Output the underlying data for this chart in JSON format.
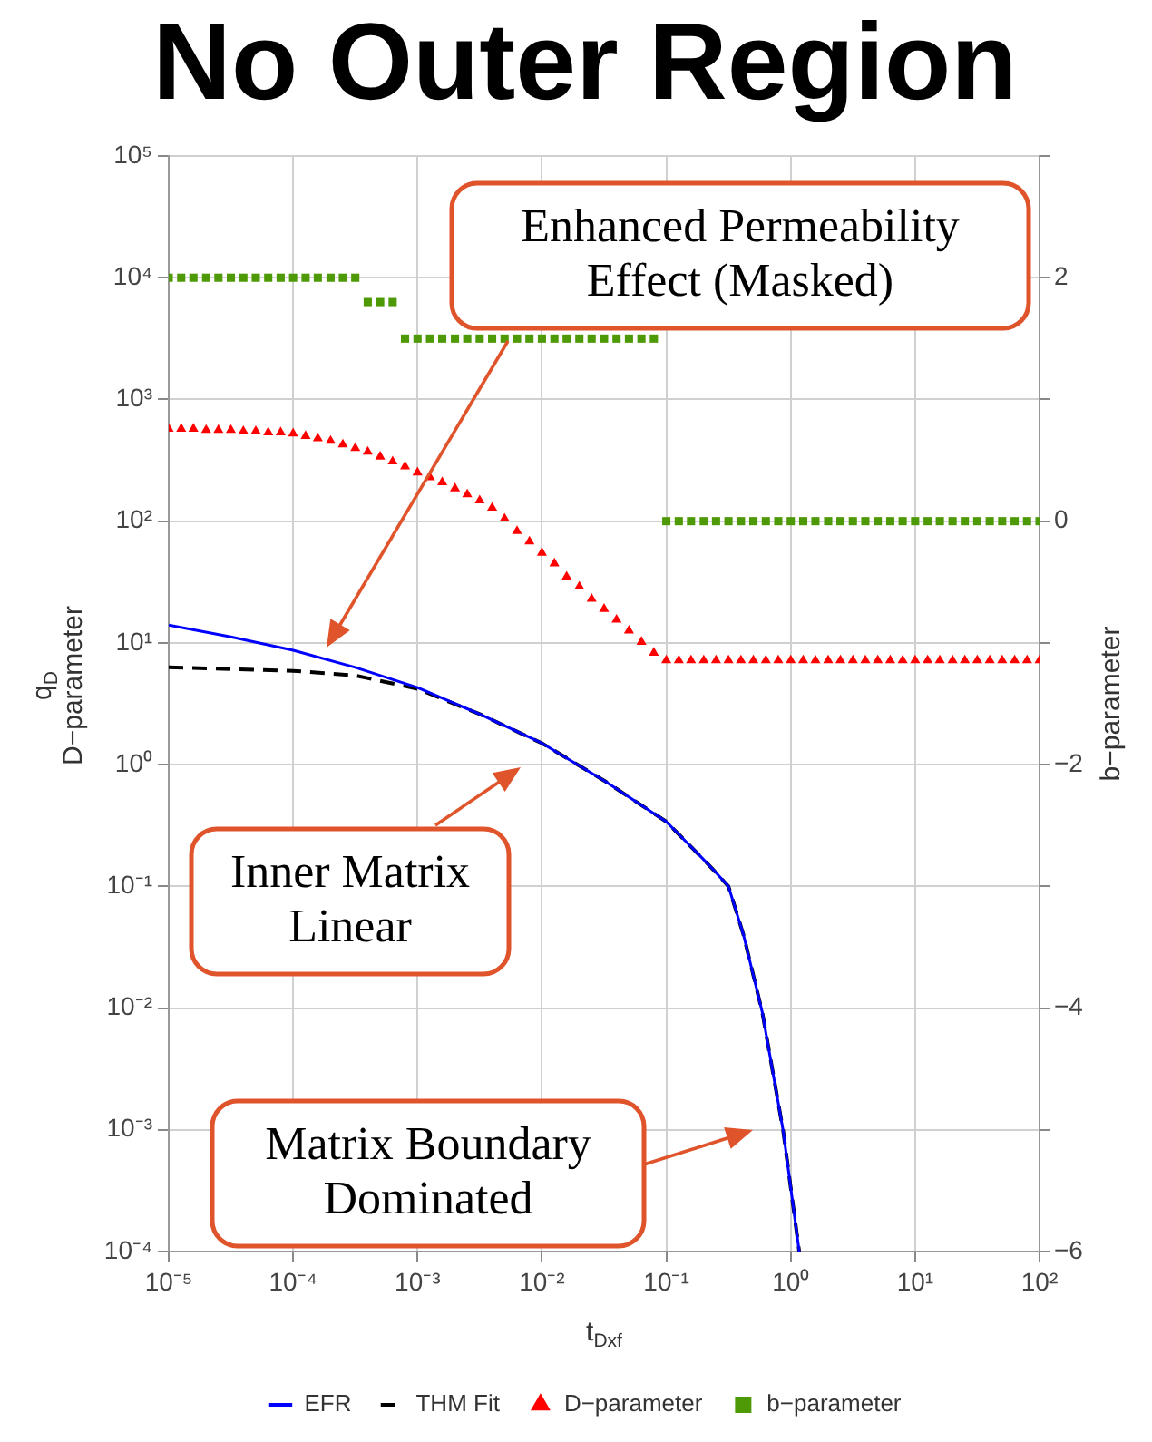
{
  "chart_data": {
    "type": "line",
    "title": "No Outer Region",
    "xlabel": "t$_{Dxf}$",
    "ylabel": "q$_{D}$\nD−parameter",
    "y2label": "b−parameter",
    "log": "xy",
    "grid": true,
    "legend": "bottom",
    "xlim": [
      1e-05,
      100
    ],
    "xticks": [
      {
        "value": 1e-05,
        "label": "10⁻⁵"
      },
      {
        "value": 0.0001,
        "label": "10⁻⁴"
      },
      {
        "value": 0.001,
        "label": "10⁻³"
      },
      {
        "value": 0.01,
        "label": "10⁻²"
      },
      {
        "value": 0.1,
        "label": "10⁻¹"
      },
      {
        "value": 1,
        "label": "10⁰"
      },
      {
        "value": 10,
        "label": "10¹"
      },
      {
        "value": 100,
        "label": "10²"
      }
    ],
    "ylim": [
      0.0001,
      100000
    ],
    "yticks": [
      {
        "value": 0.0001,
        "label": "10⁻⁴"
      },
      {
        "value": 0.001,
        "label": "10⁻³"
      },
      {
        "value": 0.01,
        "label": "10⁻²"
      },
      {
        "value": 0.1,
        "label": "10⁻¹"
      },
      {
        "value": 1,
        "label": "10⁰"
      },
      {
        "value": 10,
        "label": "10¹"
      },
      {
        "value": 100,
        "label": "10²"
      },
      {
        "value": 1000,
        "label": "10³"
      },
      {
        "value": 10000,
        "label": "10⁴"
      },
      {
        "value": 100000,
        "label": "10⁵"
      }
    ],
    "y2lim": [
      -6,
      3
    ],
    "y2ticks": [
      {
        "value": -6,
        "label": "−6"
      },
      {
        "value": -5,
        "label": null
      },
      {
        "value": -4,
        "label": "−4"
      },
      {
        "value": -3,
        "label": null
      },
      {
        "value": -2,
        "label": "−2"
      },
      {
        "value": -1,
        "label": null
      },
      0,
      {
        "value": 1,
        "label": null
      },
      2,
      {
        "value": 3,
        "label": null
      }
    ],
    "x": [
      1e-05,
      1.26e-05,
      1.58e-05,
      2e-05,
      2.51e-05,
      3.16e-05,
      3.98e-05,
      5.01e-05,
      6.31e-05,
      7.94e-05,
      0.0001,
      0.000126,
      0.000158,
      0.0002,
      0.000251,
      0.000316,
      0.000398,
      0.000501,
      0.000631,
      0.000794,
      0.001,
      0.00126,
      0.00158,
      0.002,
      0.00251,
      0.00316,
      0.00398,
      0.00501,
      0.00631,
      0.00794,
      0.01,
      0.0126,
      0.0158,
      0.02,
      0.0251,
      0.0316,
      0.0398,
      0.0501,
      0.0631,
      0.0794,
      0.1,
      0.126,
      0.158,
      0.2,
      0.251,
      0.316,
      0.398,
      0.501,
      0.631,
      0.794,
      1,
      1.26,
      1.58,
      2,
      2.51,
      3.16,
      3.98,
      5.01,
      6.31,
      7.94,
      10,
      12.6,
      15.8,
      20,
      25.1,
      31.6,
      39.8,
      50.1,
      63.1,
      79.4,
      100
    ],
    "series": [
      {
        "name": "EFR",
        "type": "line",
        "color": "#0000ff",
        "marker": "none",
        "line_style": "solid",
        "x": [
          1e-05,
          3.16e-05,
          0.0001,
          0.000316,
          0.001,
          0.00316,
          0.01,
          0.0316,
          0.1,
          0.195,
          0.25,
          0.316,
          0.417,
          0.59,
          0.87,
          1.17
        ],
        "values": [
          14,
          11.2,
          8.7,
          6.3,
          4.3,
          2.6,
          1.5,
          0.74,
          0.34,
          0.17,
          0.13,
          0.1,
          0.04,
          0.0093,
          0.00098,
          0.0001
        ]
      },
      {
        "name": "THM Fit",
        "type": "line",
        "color": "#000000",
        "marker": "none",
        "line_style": "dashed",
        "x": [
          1e-05,
          3.16e-05,
          0.0001,
          0.000316,
          0.001,
          0.00316,
          0.01,
          0.0316,
          0.1,
          0.195,
          0.25,
          0.316,
          0.417,
          0.59,
          0.87,
          1.17
        ],
        "values": [
          6.3,
          6.1,
          5.9,
          5.4,
          4.2,
          2.6,
          1.5,
          0.74,
          0.34,
          0.17,
          0.13,
          0.1,
          0.04,
          0.0093,
          0.00098,
          0.0001
        ]
      },
      {
        "name": "D−parameter",
        "type": "scatter",
        "color": "#ff0000",
        "marker": "triangle",
        "values": [
          575,
          575,
          575,
          562,
          562,
          562,
          550,
          550,
          537,
          537,
          525,
          501,
          479,
          457,
          427,
          398,
          372,
          339,
          309,
          282,
          251,
          229,
          209,
          186,
          166,
          148,
          129,
          105,
          83,
          68,
          55,
          45,
          35,
          29,
          23,
          19,
          15.5,
          12.6,
          10.2,
          8.3,
          7.2,
          7.2,
          7.2,
          7.2,
          7.2,
          7.2,
          7.2,
          7.2,
          7.2,
          7.2,
          7.2,
          7.2,
          7.2,
          7.2,
          7.2,
          7.2,
          7.2,
          7.2,
          7.2,
          7.2,
          7.2,
          7.2,
          7.2,
          7.2,
          7.2,
          7.2,
          7.2,
          7.2,
          7.2,
          7.2,
          7.2
        ]
      },
      {
        "name": "b−parameter",
        "type": "scatter",
        "axis": "y2",
        "color": "#4e9a06",
        "marker": "square",
        "values": [
          2,
          2,
          2,
          2,
          2,
          2,
          2,
          2,
          2,
          2,
          2,
          2,
          2,
          2,
          2,
          2,
          1.8,
          1.8,
          1.8,
          1.5,
          1.5,
          1.5,
          1.5,
          1.5,
          1.5,
          1.5,
          1.5,
          1.5,
          1.5,
          1.5,
          1.5,
          1.5,
          1.5,
          1.5,
          1.5,
          1.5,
          1.5,
          1.5,
          1.5,
          1.5,
          0,
          0,
          0,
          0,
          0,
          0,
          0,
          0,
          0,
          0,
          0,
          0,
          0,
          0,
          0,
          0,
          0,
          0,
          0,
          0,
          0,
          0,
          0,
          0,
          0,
          0,
          0,
          0,
          0,
          0,
          0
        ]
      }
    ],
    "annotations": [
      "Enhanced Permeability Effect (Masked)",
      "Inner Matrix Linear",
      "Matrix Boundary Dominated"
    ]
  }
}
